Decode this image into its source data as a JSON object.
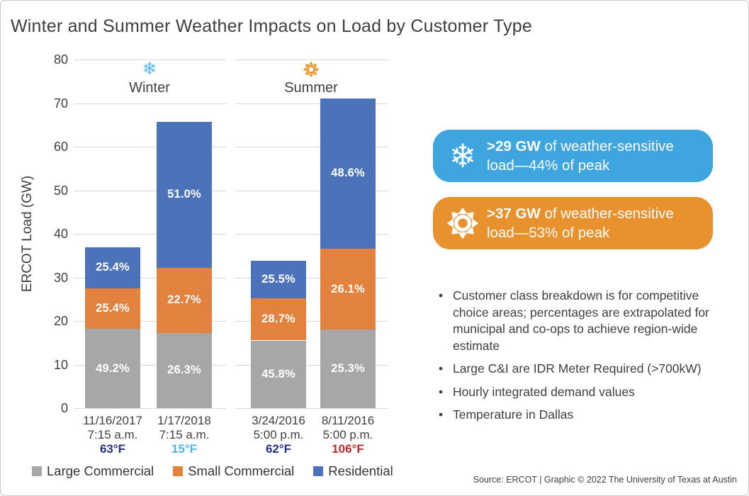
{
  "title": "Winter and Summer Weather Impacts on Load by Customer Type",
  "chart_data": {
    "type": "bar",
    "stacked": true,
    "ylabel": "ERCOT Load (GW)",
    "ylim": [
      0,
      80
    ],
    "yticks": [
      0,
      10,
      20,
      30,
      40,
      50,
      60,
      70,
      80
    ],
    "grid": true,
    "legend_position": "bottom-left",
    "series": [
      "Large Commercial",
      "Small Commercial",
      "Residential"
    ],
    "series_colors": [
      "#A7A7A7",
      "#E2823E",
      "#4C73B9"
    ],
    "groups": [
      {
        "label": "Winter",
        "icon": "snowflake-icon",
        "icon_color": "#56B7E8"
      },
      {
        "label": "Summer",
        "icon": "sun-icon",
        "icon_color": "#E7942D"
      }
    ],
    "bars": [
      {
        "group": 0,
        "date": "11/16/2017",
        "time": "7:15 a.m.",
        "temp": "63°F",
        "temp_color": "#24317F",
        "total_gw": 36.9,
        "segments": [
          {
            "series": "Large Commercial",
            "pct": 49.2,
            "label": "49.2%"
          },
          {
            "series": "Small Commercial",
            "pct": 25.4,
            "label": "25.4%"
          },
          {
            "series": "Residential",
            "pct": 25.4,
            "label": "25.4%"
          }
        ]
      },
      {
        "group": 0,
        "date": "1/17/2018",
        "time": "7:15 a.m.",
        "temp": "15°F",
        "temp_color": "#4FB3E8",
        "total_gw": 65.7,
        "segments": [
          {
            "series": "Large Commercial",
            "pct": 26.3,
            "label": "26.3%"
          },
          {
            "series": "Small Commercial",
            "pct": 22.7,
            "label": "22.7%"
          },
          {
            "series": "Residential",
            "pct": 51.0,
            "label": "51.0%"
          }
        ]
      },
      {
        "group": 1,
        "date": "3/24/2016",
        "time": "5:00 p.m.",
        "temp": "62°F",
        "temp_color": "#24317F",
        "total_gw": 33.9,
        "segments": [
          {
            "series": "Large Commercial",
            "pct": 45.8,
            "label": "45.8%"
          },
          {
            "series": "Small Commercial",
            "pct": 28.7,
            "label": "28.7%"
          },
          {
            "series": "Residential",
            "pct": 25.5,
            "label": "25.5%"
          }
        ]
      },
      {
        "group": 1,
        "date": "8/11/2016",
        "time": "5:00 p.m.",
        "temp": "106°F",
        "temp_color": "#C0272D",
        "total_gw": 71.1,
        "segments": [
          {
            "series": "Large Commercial",
            "pct": 25.3,
            "label": "25.3%"
          },
          {
            "series": "Small Commercial",
            "pct": 26.1,
            "label": "26.1%"
          },
          {
            "series": "Residential",
            "pct": 48.6,
            "label": "48.6%"
          }
        ]
      }
    ],
    "legend": [
      {
        "name": "Large Commercial",
        "color": "#A7A7A7"
      },
      {
        "name": "Small Commercial",
        "color": "#E2823E"
      },
      {
        "name": "Residential",
        "color": "#4C73B9"
      }
    ]
  },
  "callouts": [
    {
      "name": "winter-callout",
      "icon": "snowflake-icon",
      "bg_color": "#3FA5DF",
      "strong": ">29 GW",
      "text": "of weather-sensitive load—44% of peak"
    },
    {
      "name": "summer-callout",
      "icon": "sun-icon",
      "bg_color": "#E8912F",
      "strong": ">37 GW",
      "text": "of weather-sensitive load—53% of peak"
    }
  ],
  "notes": [
    "Customer class breakdown is for competitive choice areas; percentages are extrapolated for municipal and co-ops to achieve region-wide estimate",
    "Large C&I are IDR Meter Required (>700kW)",
    "Hourly integrated demand values",
    "Temperature in Dallas"
  ],
  "source": "Source: ERCOT | Graphic © 2022 The University of Texas at Austin"
}
